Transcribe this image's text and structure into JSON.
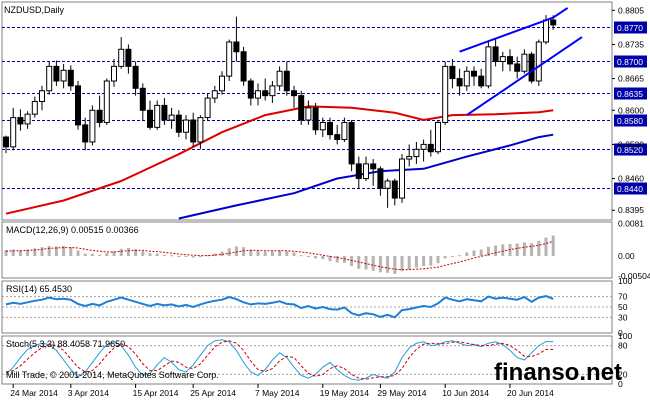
{
  "chart_data": {
    "type": "candlestick",
    "symbol_label": "NZDUSD,Daily",
    "colors": {
      "background": "#ffffff",
      "bull_candle": "#ffffff",
      "bear_candle": "#000000",
      "candle_outline": "#000000",
      "sma_fast": "#dd0000",
      "sma_slow": "#0000cc",
      "channel": "#0000ff",
      "level_line": "#0000aa",
      "level_box": "#0000aa",
      "macd_hist": "#b4b4b4",
      "macd_signal": "#cc0000",
      "rsi": "#1e7fd6",
      "stoch_main": "#1e9fd6",
      "stoch_signal": "#cc0000"
    },
    "price_axis": {
      "ylim": [
        0.8375,
        0.8822
      ],
      "ticks": [
        "0.8805",
        "0.8735",
        "0.8665",
        "0.8600",
        "0.8530",
        "0.8460",
        "0.8395"
      ],
      "tick_values": [
        0.8805,
        0.8735,
        0.8665,
        0.86,
        0.853,
        0.846,
        0.8395
      ]
    },
    "levels": [
      {
        "label": "0.8770",
        "value": 0.877
      },
      {
        "label": "0.8700",
        "value": 0.87
      },
      {
        "label": "0.8635",
        "value": 0.8635
      },
      {
        "label": "0.8580",
        "value": 0.858
      },
      {
        "label": "0.8520",
        "value": 0.852
      },
      {
        "label": "0.8440",
        "value": 0.844
      }
    ],
    "date_ticks": [
      "24 Mar 2014",
      "3 Apr 2014",
      "15 Apr 2014",
      "25 Apr 2014",
      "7 May 2014",
      "19 May 2014",
      "29 May 2014",
      "10 Jun 2014",
      "20 Jun 2014"
    ],
    "date_tick_index": [
      1,
      9,
      18,
      26,
      35,
      44,
      52,
      61,
      70
    ],
    "candles": [
      [
        0.8545,
        0.8548,
        0.8512,
        0.8525
      ],
      [
        0.8525,
        0.8605,
        0.8518,
        0.8585
      ],
      [
        0.8585,
        0.8602,
        0.8558,
        0.8572
      ],
      [
        0.8572,
        0.8598,
        0.8562,
        0.8592
      ],
      [
        0.8592,
        0.8628,
        0.8585,
        0.8618
      ],
      [
        0.8618,
        0.865,
        0.86,
        0.864
      ],
      [
        0.864,
        0.87,
        0.8632,
        0.869
      ],
      [
        0.869,
        0.8702,
        0.865,
        0.866
      ],
      [
        0.866,
        0.8695,
        0.8645,
        0.8682
      ],
      [
        0.8682,
        0.8692,
        0.864,
        0.865
      ],
      [
        0.865,
        0.866,
        0.856,
        0.857
      ],
      [
        0.857,
        0.8585,
        0.8518,
        0.8535
      ],
      [
        0.8535,
        0.861,
        0.8528,
        0.86
      ],
      [
        0.86,
        0.863,
        0.8565,
        0.8575
      ],
      [
        0.8575,
        0.8665,
        0.857,
        0.866
      ],
      [
        0.866,
        0.8705,
        0.8648,
        0.869
      ],
      [
        0.869,
        0.875,
        0.8685,
        0.8725
      ],
      [
        0.8725,
        0.8735,
        0.8675,
        0.869
      ],
      [
        0.869,
        0.87,
        0.863,
        0.8645
      ],
      [
        0.8645,
        0.8655,
        0.858,
        0.86
      ],
      [
        0.86,
        0.862,
        0.856,
        0.8565
      ],
      [
        0.8565,
        0.862,
        0.856,
        0.861
      ],
      [
        0.861,
        0.8625,
        0.857,
        0.858
      ],
      [
        0.858,
        0.8605,
        0.8562,
        0.859
      ],
      [
        0.859,
        0.86,
        0.8545,
        0.8555
      ],
      [
        0.8555,
        0.859,
        0.854,
        0.858
      ],
      [
        0.858,
        0.8595,
        0.8525,
        0.8535
      ],
      [
        0.8535,
        0.859,
        0.852,
        0.8585
      ],
      [
        0.8585,
        0.8635,
        0.858,
        0.8625
      ],
      [
        0.8625,
        0.865,
        0.8615,
        0.864
      ],
      [
        0.864,
        0.868,
        0.8632,
        0.867
      ],
      [
        0.867,
        0.8745,
        0.866,
        0.874
      ],
      [
        0.874,
        0.8792,
        0.87,
        0.872
      ],
      [
        0.872,
        0.873,
        0.865,
        0.866
      ],
      [
        0.866,
        0.8665,
        0.861,
        0.8625
      ],
      [
        0.8625,
        0.8655,
        0.861,
        0.864
      ],
      [
        0.864,
        0.8665,
        0.862,
        0.863
      ],
      [
        0.863,
        0.866,
        0.8615,
        0.865
      ],
      [
        0.865,
        0.869,
        0.864,
        0.868
      ],
      [
        0.868,
        0.87,
        0.863,
        0.864
      ],
      [
        0.864,
        0.865,
        0.8605,
        0.863
      ],
      [
        0.863,
        0.864,
        0.857,
        0.858
      ],
      [
        0.858,
        0.862,
        0.857,
        0.8605
      ],
      [
        0.8605,
        0.8615,
        0.855,
        0.856
      ],
      [
        0.856,
        0.8585,
        0.8545,
        0.8575
      ],
      [
        0.8575,
        0.8585,
        0.854,
        0.855
      ],
      [
        0.855,
        0.857,
        0.853,
        0.854
      ],
      [
        0.854,
        0.8585,
        0.8535,
        0.8575
      ],
      [
        0.8575,
        0.858,
        0.8475,
        0.849
      ],
      [
        0.849,
        0.8505,
        0.844,
        0.846
      ],
      [
        0.846,
        0.8505,
        0.8455,
        0.849
      ],
      [
        0.849,
        0.85,
        0.8445,
        0.848
      ],
      [
        0.848,
        0.8485,
        0.8425,
        0.844
      ],
      [
        0.844,
        0.846,
        0.84,
        0.8455
      ],
      [
        0.8455,
        0.846,
        0.8405,
        0.842
      ],
      [
        0.842,
        0.851,
        0.841,
        0.85
      ],
      [
        0.85,
        0.853,
        0.8485,
        0.8505
      ],
      [
        0.8505,
        0.8535,
        0.849,
        0.852
      ],
      [
        0.852,
        0.854,
        0.8495,
        0.853
      ],
      [
        0.853,
        0.856,
        0.8505,
        0.8515
      ],
      [
        0.8515,
        0.858,
        0.851,
        0.8575
      ],
      [
        0.8575,
        0.87,
        0.857,
        0.869
      ],
      [
        0.869,
        0.8705,
        0.8645,
        0.8665
      ],
      [
        0.8665,
        0.8685,
        0.863,
        0.865
      ],
      [
        0.865,
        0.869,
        0.864,
        0.868
      ],
      [
        0.868,
        0.869,
        0.865,
        0.867
      ],
      [
        0.867,
        0.8685,
        0.8645,
        0.865
      ],
      [
        0.865,
        0.874,
        0.8645,
        0.873
      ],
      [
        0.873,
        0.8745,
        0.869,
        0.87
      ],
      [
        0.87,
        0.872,
        0.868,
        0.871
      ],
      [
        0.871,
        0.8725,
        0.868,
        0.8695
      ],
      [
        0.8695,
        0.871,
        0.8665,
        0.868
      ],
      [
        0.868,
        0.8725,
        0.8675,
        0.8715
      ],
      [
        0.8715,
        0.872,
        0.8655,
        0.866
      ],
      [
        0.866,
        0.8745,
        0.865,
        0.874
      ],
      [
        0.874,
        0.8795,
        0.8735,
        0.8785
      ],
      [
        0.8785,
        0.8795,
        0.8765,
        0.8775
      ]
    ],
    "sma_red": [
      [
        0,
        0.8388
      ],
      [
        8,
        0.8415
      ],
      [
        16,
        0.8455
      ],
      [
        24,
        0.851
      ],
      [
        30,
        0.8555
      ],
      [
        36,
        0.859
      ],
      [
        42,
        0.8608
      ],
      [
        48,
        0.8605
      ],
      [
        54,
        0.8595
      ],
      [
        58,
        0.858
      ],
      [
        62,
        0.859
      ],
      [
        68,
        0.8592
      ],
      [
        74,
        0.8596
      ],
      [
        76,
        0.86
      ]
    ],
    "sma_blue": [
      [
        24,
        0.8378
      ],
      [
        32,
        0.8405
      ],
      [
        40,
        0.843
      ],
      [
        46,
        0.846
      ],
      [
        52,
        0.8475
      ],
      [
        58,
        0.848
      ],
      [
        64,
        0.8505
      ],
      [
        70,
        0.8528
      ],
      [
        74,
        0.8545
      ],
      [
        76,
        0.855
      ]
    ],
    "channel_upper": [
      [
        63,
        0.872
      ],
      [
        76,
        0.879
      ],
      [
        78,
        0.881
      ]
    ],
    "channel_lower": [
      [
        64,
        0.859
      ],
      [
        80,
        0.875
      ]
    ],
    "macd": {
      "label": "MACD(12,26,9) 0.00515 0.00366",
      "ylim": [
        -0.0055,
        0.0085
      ],
      "ticks": [
        "0.0081",
        "0.00",
        "-0.00504"
      ],
      "tick_values": [
        0.0081,
        0,
        -0.00504
      ],
      "histogram": [
        0.0015,
        0.0016,
        0.0014,
        0.0016,
        0.0019,
        0.0022,
        0.0025,
        0.0024,
        0.0025,
        0.0022,
        0.0014,
        0.0006,
        0.0005,
        0.0003,
        0.0007,
        0.0012,
        0.0018,
        0.002,
        0.0017,
        0.0012,
        0.0007,
        0.0006,
        0.0003,
        0.0002,
        -0.0002,
        -0.0001,
        -0.0004,
        -0.0002,
        0.0002,
        0.0006,
        0.0011,
        0.0019,
        0.0024,
        0.0022,
        0.0016,
        0.0013,
        0.0011,
        0.0012,
        0.0014,
        0.0012,
        0.0009,
        0.0002,
        -0.0001,
        -0.0006,
        -0.0008,
        -0.0013,
        -0.0016,
        -0.0017,
        -0.0025,
        -0.0032,
        -0.0034,
        -0.0037,
        -0.0041,
        -0.0042,
        -0.0045,
        -0.0038,
        -0.0034,
        -0.0029,
        -0.0025,
        -0.0024,
        -0.0018,
        -0.0006,
        -0.0001,
        0.0002,
        0.0009,
        0.0014,
        0.0016,
        0.0023,
        0.0026,
        0.0029,
        0.003,
        0.0031,
        0.0034,
        0.0032,
        0.0038,
        0.0046,
        0.0051
      ],
      "signal": [
        0.0012,
        0.0013,
        0.0013,
        0.0014,
        0.0015,
        0.0017,
        0.0019,
        0.002,
        0.0021,
        0.0021,
        0.002,
        0.0017,
        0.0014,
        0.0012,
        0.001,
        0.001,
        0.0012,
        0.0013,
        0.0014,
        0.0014,
        0.0012,
        0.0011,
        0.0009,
        0.0007,
        0.0005,
        0.0003,
        0.0002,
        0.0001,
        0.0001,
        0.0002,
        0.0004,
        0.0007,
        0.001,
        0.0013,
        0.0014,
        0.0014,
        0.0013,
        0.0013,
        0.0013,
        0.0013,
        0.0012,
        0.001,
        0.0008,
        0.0005,
        0.0002,
        -0.0001,
        -0.0004,
        -0.0007,
        -0.0011,
        -0.0015,
        -0.0019,
        -0.0023,
        -0.0027,
        -0.003,
        -0.0033,
        -0.0034,
        -0.0034,
        -0.0033,
        -0.0032,
        -0.003,
        -0.0028,
        -0.0023,
        -0.0019,
        -0.0015,
        -0.001,
        -0.0005,
        -0.0001,
        0.0004,
        0.0008,
        0.0012,
        0.0016,
        0.0019,
        0.0022,
        0.0024,
        0.0027,
        0.0031,
        0.0037
      ]
    },
    "rsi": {
      "label": "RSI(14) 65.4530",
      "ylim": [
        0,
        100
      ],
      "ticks": [
        "100",
        "70",
        "50",
        "30",
        "0"
      ],
      "tick_values": [
        100,
        70,
        50,
        30,
        0
      ],
      "values": [
        55,
        58,
        56,
        59,
        62,
        64,
        68,
        65,
        66,
        64,
        56,
        52,
        56,
        53,
        60,
        64,
        68,
        64,
        60,
        56,
        52,
        56,
        53,
        55,
        51,
        54,
        50,
        55,
        59,
        62,
        64,
        69,
        65,
        59,
        55,
        57,
        56,
        58,
        61,
        56,
        55,
        48,
        52,
        47,
        50,
        46,
        45,
        49,
        38,
        34,
        38,
        36,
        31,
        35,
        30,
        44,
        46,
        49,
        52,
        50,
        57,
        68,
        64,
        61,
        65,
        63,
        61,
        70,
        66,
        68,
        66,
        64,
        69,
        60,
        68,
        71,
        65.5
      ]
    },
    "stoch": {
      "label": "Stoch(5,3,3) 88.4058 71.9650",
      "ylim": [
        0,
        100
      ],
      "ticks": [
        "100",
        "80",
        "20",
        "0"
      ],
      "tick_values": [
        100,
        80,
        20,
        0
      ],
      "main": [
        20,
        35,
        55,
        72,
        80,
        85,
        82,
        70,
        50,
        30,
        15,
        25,
        45,
        65,
        82,
        88,
        80,
        60,
        35,
        18,
        22,
        40,
        55,
        45,
        30,
        25,
        40,
        60,
        80,
        90,
        92,
        88,
        70,
        45,
        25,
        18,
        30,
        50,
        65,
        55,
        35,
        18,
        12,
        20,
        35,
        45,
        30,
        18,
        10,
        8,
        12,
        20,
        15,
        12,
        25,
        55,
        75,
        85,
        88,
        80,
        82,
        88,
        90,
        85,
        80,
        82,
        78,
        85,
        88,
        82,
        70,
        55,
        50,
        65,
        80,
        88.4,
        88.4
      ],
      "signal": [
        25,
        28,
        38,
        52,
        65,
        76,
        82,
        80,
        70,
        52,
        35,
        25,
        28,
        42,
        60,
        75,
        84,
        78,
        62,
        42,
        28,
        28,
        38,
        48,
        45,
        35,
        32,
        42,
        60,
        77,
        87,
        90,
        85,
        70,
        48,
        30,
        26,
        32,
        48,
        58,
        55,
        38,
        22,
        16,
        20,
        32,
        38,
        32,
        20,
        12,
        10,
        13,
        15,
        15,
        18,
        32,
        55,
        72,
        83,
        85,
        84,
        84,
        87,
        88,
        85,
        82,
        80,
        80,
        83,
        85,
        80,
        70,
        58,
        57,
        63,
        72,
        72
      ]
    }
  },
  "footer": {
    "copyright": "Mill Trade, © 2001-2014, MetaQuotes Software Corp.",
    "watermark": "finanso.net"
  }
}
